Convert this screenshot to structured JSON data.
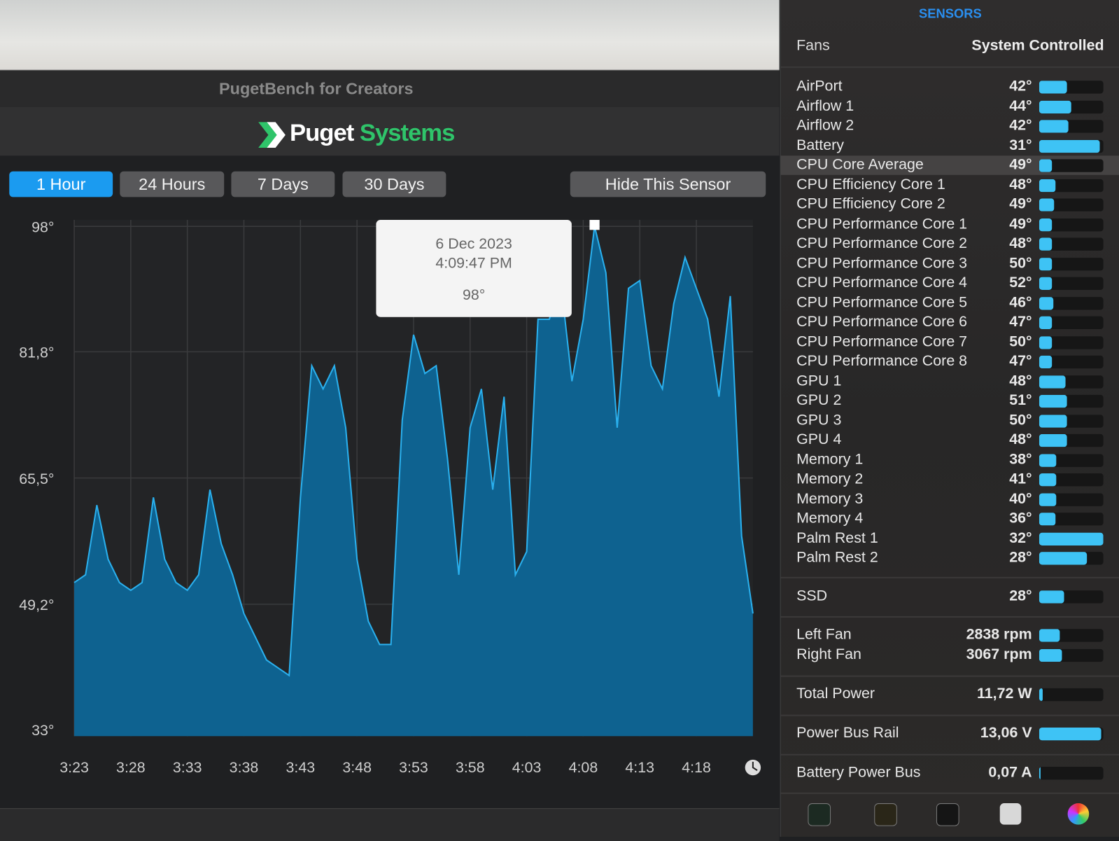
{
  "window_title": "PugetBench for Creators",
  "logo": {
    "first": "Puget",
    "second": "Systems"
  },
  "range_buttons": [
    "1 Hour",
    "24 Hours",
    "7 Days",
    "30 Days"
  ],
  "hide_button": "Hide This Sensor",
  "chart_data": {
    "type": "area",
    "color": "#2ab0ee",
    "fill": "#0e6290",
    "grid": true,
    "categories": [
      "3:23",
      null,
      null,
      null,
      null,
      "3:28",
      null,
      null,
      null,
      null,
      "3:33",
      null,
      null,
      null,
      null,
      "3:38",
      null,
      null,
      null,
      null,
      "3:43",
      null,
      null,
      null,
      null,
      "3:48",
      null,
      null,
      null,
      null,
      "3:53",
      null,
      null,
      null,
      null,
      "3:58",
      null,
      null,
      null,
      null,
      "4:03",
      null,
      null,
      null,
      null,
      "4:08",
      null,
      null,
      null,
      null,
      "4:13",
      null,
      null,
      null,
      null,
      "4:18",
      null,
      null,
      null,
      null,
      null
    ],
    "values": [
      52,
      53,
      62,
      55,
      52,
      51,
      52,
      63,
      55,
      52,
      51,
      53,
      64,
      57,
      53,
      48,
      45,
      42,
      41,
      40,
      63,
      80,
      77,
      80,
      72,
      55,
      47,
      44,
      44,
      73,
      84,
      79,
      80,
      68,
      53,
      72,
      77,
      64,
      76,
      53,
      56,
      86,
      86,
      91,
      78,
      86,
      98,
      92,
      72,
      90,
      91,
      80,
      77,
      88,
      94,
      90,
      86,
      76,
      89,
      58,
      48
    ],
    "ylim": [
      33,
      98
    ],
    "yticks": [
      {
        "value": 33,
        "label": "33°"
      },
      {
        "value": 49.2,
        "label": "49,2°"
      },
      {
        "value": 65.5,
        "label": "65,5°"
      },
      {
        "value": 81.8,
        "label": "81,8°"
      },
      {
        "value": 98,
        "label": "98°"
      }
    ],
    "tooltip": {
      "date": "6 Dec 2023",
      "time": "4:09:47 PM",
      "value": "98°"
    }
  },
  "sidebar": {
    "title": "SENSORS",
    "fans_label": "Fans",
    "fans_mode": "System Controlled",
    "sensor_groups": [
      [
        {
          "name": "AirPort",
          "value": "42°",
          "fill": 43
        },
        {
          "name": "Airflow 1",
          "value": "44°",
          "fill": 50
        },
        {
          "name": "Airflow 2",
          "value": "42°",
          "fill": 46
        },
        {
          "name": "Battery",
          "value": "31°",
          "fill": 94
        },
        {
          "name": "CPU Core Average",
          "value": "49°",
          "fill": 20
        },
        {
          "name": "CPU Efficiency Core 1",
          "value": "48°",
          "fill": 25
        },
        {
          "name": "CPU Efficiency Core 2",
          "value": "49°",
          "fill": 23
        },
        {
          "name": "CPU Performance Core 1",
          "value": "49°",
          "fill": 20
        },
        {
          "name": "CPU Performance Core 2",
          "value": "48°",
          "fill": 20
        },
        {
          "name": "CPU Performance Core 3",
          "value": "50°",
          "fill": 20
        },
        {
          "name": "CPU Performance Core 4",
          "value": "52°",
          "fill": 20
        },
        {
          "name": "CPU Performance Core 5",
          "value": "46°",
          "fill": 22
        },
        {
          "name": "CPU Performance Core 6",
          "value": "47°",
          "fill": 20
        },
        {
          "name": "CPU Performance Core 7",
          "value": "50°",
          "fill": 20
        },
        {
          "name": "CPU Performance Core 8",
          "value": "47°",
          "fill": 20
        },
        {
          "name": "GPU 1",
          "value": "48°",
          "fill": 41
        },
        {
          "name": "GPU 2",
          "value": "51°",
          "fill": 43
        },
        {
          "name": "GPU 3",
          "value": "50°",
          "fill": 43
        },
        {
          "name": "GPU 4",
          "value": "48°",
          "fill": 43
        },
        {
          "name": "Memory 1",
          "value": "38°",
          "fill": 27
        },
        {
          "name": "Memory 2",
          "value": "41°",
          "fill": 27
        },
        {
          "name": "Memory 3",
          "value": "40°",
          "fill": 27
        },
        {
          "name": "Memory 4",
          "value": "36°",
          "fill": 25
        },
        {
          "name": "Palm Rest 1",
          "value": "32°",
          "fill": 100
        },
        {
          "name": "Palm Rest 2",
          "value": "28°",
          "fill": 74
        }
      ],
      [
        {
          "name": "SSD",
          "value": "28°",
          "fill": 39
        }
      ],
      [
        {
          "name": "Left Fan",
          "value": "2838 rpm",
          "fill": 32
        },
        {
          "name": "Right Fan",
          "value": "3067 rpm",
          "fill": 36
        }
      ],
      [
        {
          "name": "Total Power",
          "value": "11,72 W",
          "fill": 6
        }
      ],
      [
        {
          "name": "Power Bus Rail",
          "value": "13,06 V",
          "fill": 97
        }
      ],
      [
        {
          "name": "Battery Power Bus",
          "value": "0,07 A",
          "fill": 2
        }
      ]
    ]
  }
}
